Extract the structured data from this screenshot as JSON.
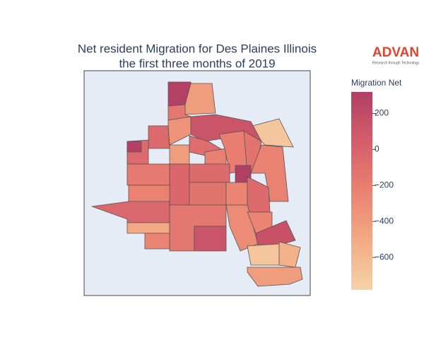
{
  "chart_data": {
    "type": "choropleth",
    "title": "Net resident Migration for Des Plaines Illinois",
    "subtitle": "the first three months of 2019",
    "logo": {
      "name": "ADVAN",
      "tagline": "Research through Technology"
    },
    "colorbar_title": "Migration Net",
    "colorscale": [
      "#f6d2a9",
      "#f3aa84",
      "#ea8171",
      "#d55d6a",
      "#b13f64"
    ],
    "clim": [
      -780,
      320
    ],
    "cticks": [
      200,
      0,
      {
        "value": -200,
        "label": "−200"
      },
      {
        "value": -400,
        "label": "−400"
      },
      {
        "value": -600,
        "label": "−600"
      }
    ],
    "values": [
      300,
      -420,
      -150,
      -700,
      120,
      -350,
      -50,
      -60,
      300,
      -420,
      -80,
      -220,
      -200,
      -120,
      -240,
      320,
      -180,
      -20,
      -60,
      -130,
      -230,
      -40,
      -500,
      -250,
      -150,
      120,
      -260,
      -60,
      -300,
      -250,
      150,
      -700,
      -550,
      -420
    ]
  }
}
